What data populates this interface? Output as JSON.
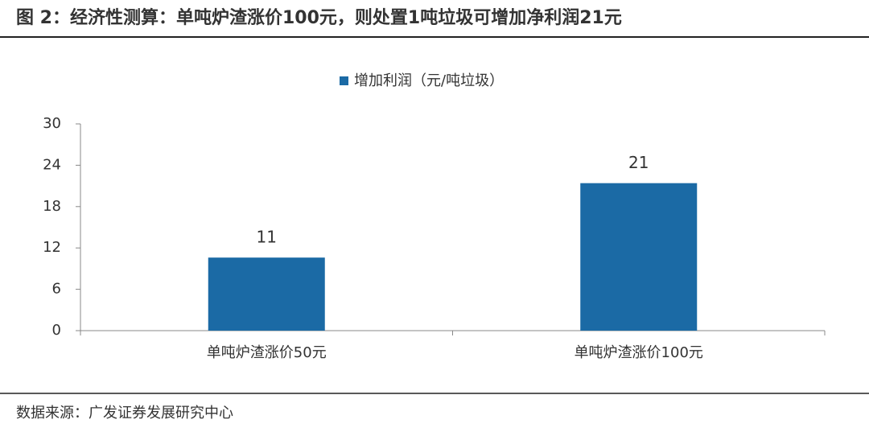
{
  "chart_data": {
    "type": "bar",
    "title": "图 2：经济性测算：单吨炉渣涨价100元，则处置1吨垃圾可增加净利润21元",
    "source": "数据来源：广发证券发展研究中心",
    "categories": [
      "单吨炉渣涨价50元",
      "单吨炉渣涨价100元"
    ],
    "series": [
      {
        "name": "增加利润（元/吨垃圾）",
        "color": "#1b6aa5",
        "values": [
          10.6,
          21.4
        ],
        "value_labels": [
          "11",
          "21"
        ]
      }
    ],
    "ylim": [
      0,
      30
    ],
    "yticks": [
      0,
      6,
      12,
      18,
      24,
      30
    ],
    "grid": false,
    "legend": "top"
  }
}
